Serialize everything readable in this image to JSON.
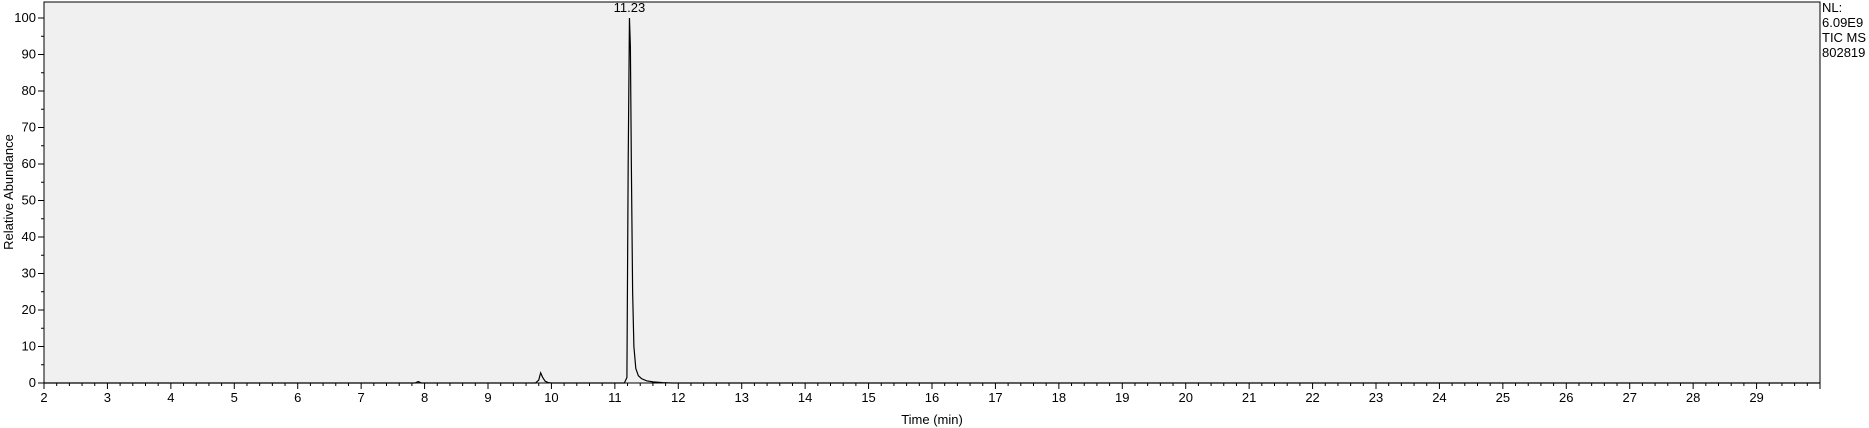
{
  "chart_data": {
    "type": "line",
    "xlabel": "Time (min)",
    "ylabel": "Relative Abundance",
    "xlim": [
      2.0,
      30.0
    ],
    "ylim": [
      0,
      100
    ],
    "x_ticks": [
      2,
      3,
      4,
      5,
      6,
      7,
      8,
      9,
      10,
      11,
      12,
      13,
      14,
      15,
      16,
      17,
      18,
      19,
      20,
      21,
      22,
      23,
      24,
      25,
      26,
      27,
      28,
      29
    ],
    "y_ticks": [
      0,
      10,
      20,
      30,
      40,
      50,
      60,
      70,
      80,
      90,
      100
    ],
    "peak_annotations": [
      {
        "x": 11.23,
        "label": "11.23"
      }
    ],
    "info": [
      "NL:",
      "6.09E9",
      "TIC  MS",
      "802819"
    ],
    "series": [
      {
        "color": "#000000",
        "points": [
          [
            2.0,
            0.0
          ],
          [
            7.85,
            0.0
          ],
          [
            7.9,
            0.4
          ],
          [
            7.95,
            0.0
          ],
          [
            9.75,
            0.0
          ],
          [
            9.8,
            0.8
          ],
          [
            9.83,
            2.8
          ],
          [
            9.86,
            1.6
          ],
          [
            9.9,
            0.5
          ],
          [
            9.95,
            0.1
          ],
          [
            10.0,
            0.0
          ],
          [
            11.15,
            0.0
          ],
          [
            11.19,
            1.5
          ],
          [
            11.21,
            60.0
          ],
          [
            11.23,
            100.0
          ],
          [
            11.245,
            92.0
          ],
          [
            11.26,
            60.0
          ],
          [
            11.28,
            25.0
          ],
          [
            11.3,
            10.0
          ],
          [
            11.33,
            4.0
          ],
          [
            11.37,
            2.0
          ],
          [
            11.42,
            1.2
          ],
          [
            11.5,
            0.6
          ],
          [
            11.6,
            0.3
          ],
          [
            11.75,
            0.1
          ],
          [
            11.9,
            0.0
          ],
          [
            30.0,
            0.0
          ]
        ]
      }
    ]
  }
}
